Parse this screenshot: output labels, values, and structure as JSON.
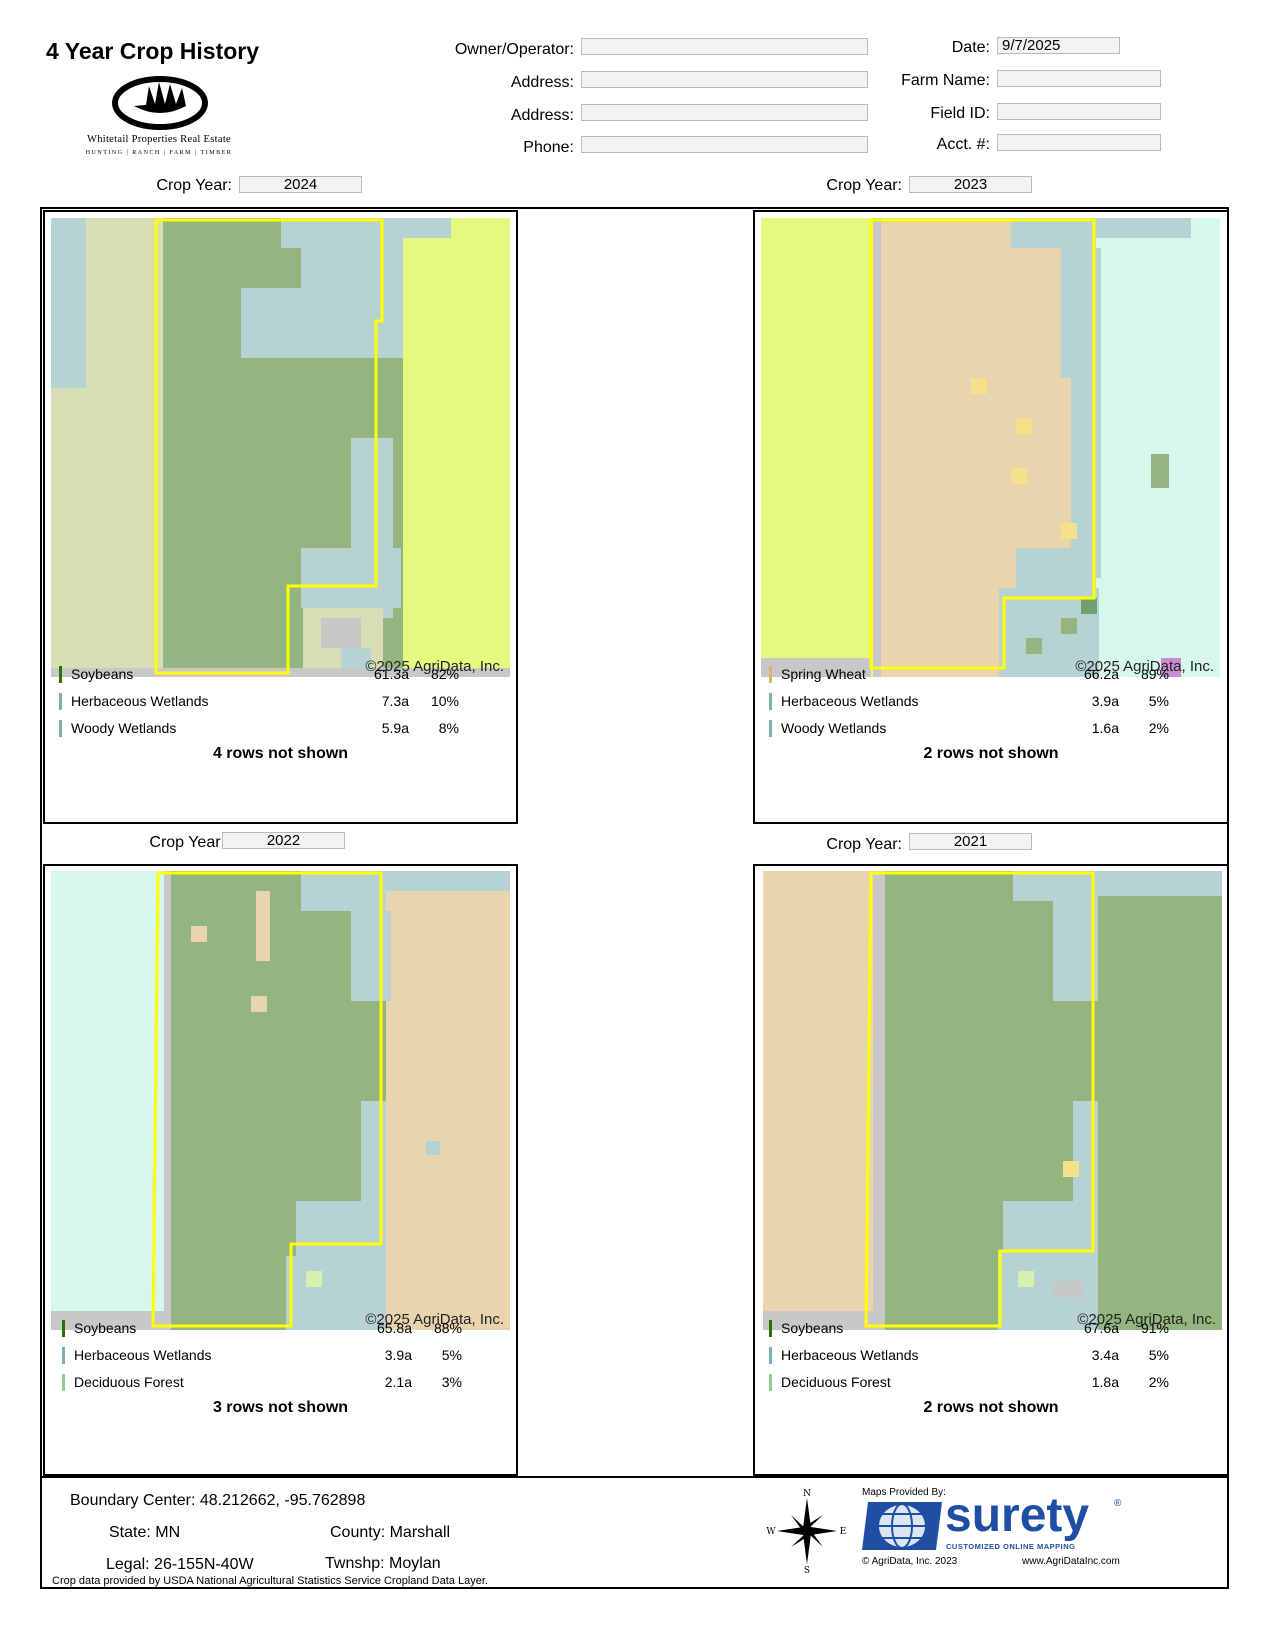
{
  "header": {
    "title": "4 Year Crop History",
    "logo_name": "Whitetail Properties Real Estate",
    "logo_tagline": "HUNTING | RANCH | FARM | TIMBER"
  },
  "form": {
    "owner_label": "Owner/Operator:",
    "owner_value": "",
    "address1_label": "Address:",
    "address1_value": "",
    "address2_label": "Address:",
    "address2_value": "",
    "phone_label": "Phone:",
    "phone_value": "",
    "date_label": "Date:",
    "date_value": "9/7/2025",
    "farm_name_label": "Farm Name:",
    "farm_name_value": "",
    "field_id_label": "Field ID:",
    "field_id_value": "",
    "acct_label": "Acct. #:",
    "acct_value": ""
  },
  "crop_year_label": "Crop Year:",
  "panels": [
    {
      "year": "2024",
      "copyright": "©2025 AgriData, Inc.",
      "rows": [
        {
          "name": "Soybeans",
          "acres": "61.3a",
          "pct": "82%",
          "color": "#267300"
        },
        {
          "name": "Herbaceous Wetlands",
          "acres": "7.3a",
          "pct": "10%",
          "color": "#7cafaf"
        },
        {
          "name": "Woody Wetlands",
          "acres": "5.9a",
          "pct": "8%",
          "color": "#7cafaf"
        }
      ],
      "hidden": "4 rows not shown"
    },
    {
      "year": "2023",
      "copyright": "©2025 AgriData, Inc.",
      "rows": [
        {
          "name": "Spring Wheat",
          "acres": "66.2a",
          "pct": "89%",
          "color": "#d8b56b"
        },
        {
          "name": "Herbaceous Wetlands",
          "acres": "3.9a",
          "pct": "5%",
          "color": "#7cafaf"
        },
        {
          "name": "Woody Wetlands",
          "acres": "1.6a",
          "pct": "2%",
          "color": "#7cafaf"
        }
      ],
      "hidden": "2 rows not shown"
    },
    {
      "year": "2022",
      "copyright": "©2025 AgriData, Inc.",
      "rows": [
        {
          "name": "Soybeans",
          "acres": "65.8a",
          "pct": "88%",
          "color": "#267300"
        },
        {
          "name": "Herbaceous Wetlands",
          "acres": "3.9a",
          "pct": "5%",
          "color": "#7cafaf"
        },
        {
          "name": "Deciduous Forest",
          "acres": "2.1a",
          "pct": "3%",
          "color": "#93cc93"
        }
      ],
      "hidden": "3 rows not shown"
    },
    {
      "year": "2021",
      "copyright": "©2025 AgriData, Inc.",
      "rows": [
        {
          "name": "Soybeans",
          "acres": "67.6a",
          "pct": "91%",
          "color": "#267300"
        },
        {
          "name": "Herbaceous Wetlands",
          "acres": "3.4a",
          "pct": "5%",
          "color": "#7cafaf"
        },
        {
          "name": "Deciduous Forest",
          "acres": "1.8a",
          "pct": "2%",
          "color": "#93cc93"
        }
      ],
      "hidden": "2 rows not shown"
    }
  ],
  "footer": {
    "boundary_label": "Boundary Center:",
    "boundary_value": "48.212662, -95.762898",
    "state_label": "State:",
    "state_value": "MN",
    "county_label": "County:",
    "county_value": "Marshall",
    "legal_label": "Legal:",
    "legal_value": "26-155N-40W",
    "twnshp_label": "Twnshp:",
    "twnshp_value": "Moylan",
    "credit": "Crop data provided by USDA National Agricultural Statistics Service Cropland Data Layer.",
    "compass": {
      "n": "N",
      "s": "S",
      "e": "E",
      "w": "W"
    },
    "maps_provided": "Maps Provided By:",
    "brand": "surety",
    "brand_sub": "CUSTOMIZED ONLINE MAPPING",
    "brand_copyright": "© AgriData, Inc. 2023",
    "brand_url": "www.AgriDataInc.com"
  },
  "colors": {
    "soybeans": "#93b57f",
    "spring_wheat": "#e8d5ad",
    "wetlands": "#b7d2d2",
    "corn": "#e6f97f",
    "grass": "#d9ddb5",
    "water_grass": "#d6f8ea",
    "boundary": "#ffff00",
    "road": "#c8c8c8"
  }
}
